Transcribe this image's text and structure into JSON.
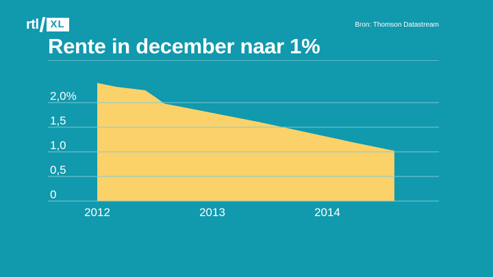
{
  "logo": {
    "rtl": "rtl",
    "xl": "XL"
  },
  "source": "Bron: Thomson Datastream",
  "title": "Rente in december naar 1%",
  "colors": {
    "background": "#1199ad",
    "area": "#fbd16a",
    "grid": "#7fcad6",
    "text": "#ffffff"
  },
  "chart_data": {
    "type": "area",
    "title": "Rente in december naar 1%",
    "xlabel": "",
    "ylabel": "",
    "x_ticks": [
      "2012",
      "2013",
      "2014"
    ],
    "y_ticks": [
      "0",
      "0,5",
      "1,0",
      "1,5",
      "2,0%"
    ],
    "y_tick_values": [
      0,
      0.5,
      1.0,
      1.5,
      2.0
    ],
    "ylim": [
      0,
      2.4
    ],
    "grid": true,
    "x": [
      "2012-01",
      "2012-03",
      "2012-06",
      "2012-07",
      "2012-08",
      "2013-06",
      "2014-04",
      "2014-07",
      "2014-08"
    ],
    "values": [
      2.4,
      2.32,
      2.25,
      2.12,
      1.98,
      1.6,
      1.18,
      1.06,
      1.02
    ]
  }
}
